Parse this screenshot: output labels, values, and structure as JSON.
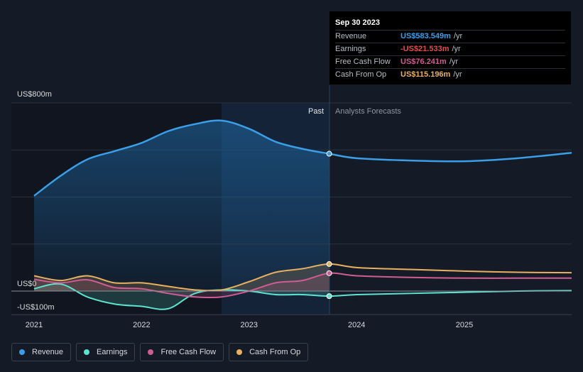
{
  "tooltip": {
    "date": "Sep 30 2023",
    "rows": [
      {
        "label": "Revenue",
        "value": "US$583.549m",
        "unit": "/yr",
        "color": "#3b9ee8"
      },
      {
        "label": "Earnings",
        "value": "-US$21.533m",
        "unit": "/yr",
        "color": "#e64a4a"
      },
      {
        "label": "Free Cash Flow",
        "value": "US$76.241m",
        "unit": "/yr",
        "color": "#d15b94"
      },
      {
        "label": "Cash From Op",
        "value": "US$115.196m",
        "unit": "/yr",
        "color": "#e8b060"
      }
    ]
  },
  "legend": [
    {
      "label": "Revenue",
      "color": "#3b9ee8"
    },
    {
      "label": "Earnings",
      "color": "#5de3cf"
    },
    {
      "label": "Free Cash Flow",
      "color": "#d15b94"
    },
    {
      "label": "Cash From Op",
      "color": "#e8b060"
    }
  ],
  "chart_data": {
    "type": "line",
    "y_tick_labels": [
      "US$800m",
      "US$0",
      "-US$100m"
    ],
    "ylim": [
      -100,
      800
    ],
    "x_tick_labels": [
      "2021",
      "2022",
      "2023",
      "2024",
      "2025"
    ],
    "xlim": [
      "2021-01-01",
      "2025-12-31"
    ],
    "divider_date": "2023-09-30",
    "past_label": "Past",
    "forecast_label": "Analysts Forecasts",
    "grid": true,
    "series": [
      {
        "name": "Revenue",
        "color": "#3b9ee8",
        "x": [
          "2021-01-01",
          "2021-04-01",
          "2021-07-01",
          "2021-10-01",
          "2022-01-01",
          "2022-04-01",
          "2022-07-01",
          "2022-09-30",
          "2023-01-01",
          "2023-04-01",
          "2023-07-01",
          "2023-09-30",
          "2024-01-01",
          "2024-07-01",
          "2025-01-01",
          "2025-07-01",
          "2025-12-31"
        ],
        "values": [
          405,
          490,
          560,
          595,
          630,
          680,
          710,
          725,
          690,
          635,
          605,
          584,
          565,
          555,
          552,
          565,
          588
        ]
      },
      {
        "name": "Earnings",
        "color": "#5de3cf",
        "x": [
          "2021-01-01",
          "2021-04-01",
          "2021-07-01",
          "2021-10-01",
          "2022-01-01",
          "2022-04-01",
          "2022-07-01",
          "2022-09-30",
          "2023-01-01",
          "2023-04-01",
          "2023-07-01",
          "2023-09-30",
          "2024-01-01",
          "2024-07-01",
          "2025-01-01",
          "2025-07-01",
          "2025-12-31"
        ],
        "values": [
          10,
          30,
          -25,
          -55,
          -65,
          -75,
          -10,
          5,
          0,
          -15,
          -15,
          -21.5,
          -15,
          -10,
          -5,
          0,
          2
        ]
      },
      {
        "name": "Free Cash Flow",
        "color": "#d15b94",
        "x": [
          "2021-01-01",
          "2021-04-01",
          "2021-07-01",
          "2021-10-01",
          "2022-01-01",
          "2022-04-01",
          "2022-07-01",
          "2022-09-30",
          "2023-01-01",
          "2023-04-01",
          "2023-07-01",
          "2023-09-30",
          "2024-01-01",
          "2024-07-01",
          "2025-01-01",
          "2025-07-01",
          "2025-12-31"
        ],
        "values": [
          50,
          35,
          48,
          15,
          10,
          -10,
          -25,
          -25,
          0,
          35,
          45,
          76,
          65,
          58,
          55,
          55,
          55
        ]
      },
      {
        "name": "Cash From Op",
        "color": "#e8b060",
        "x": [
          "2021-01-01",
          "2021-04-01",
          "2021-07-01",
          "2021-10-01",
          "2022-01-01",
          "2022-04-01",
          "2022-07-01",
          "2022-09-30",
          "2023-01-01",
          "2023-04-01",
          "2023-07-01",
          "2023-09-30",
          "2024-01-01",
          "2024-07-01",
          "2025-01-01",
          "2025-07-01",
          "2025-12-31"
        ],
        "values": [
          65,
          45,
          65,
          35,
          35,
          20,
          5,
          5,
          40,
          80,
          95,
          115,
          100,
          92,
          85,
          80,
          78
        ]
      }
    ]
  }
}
